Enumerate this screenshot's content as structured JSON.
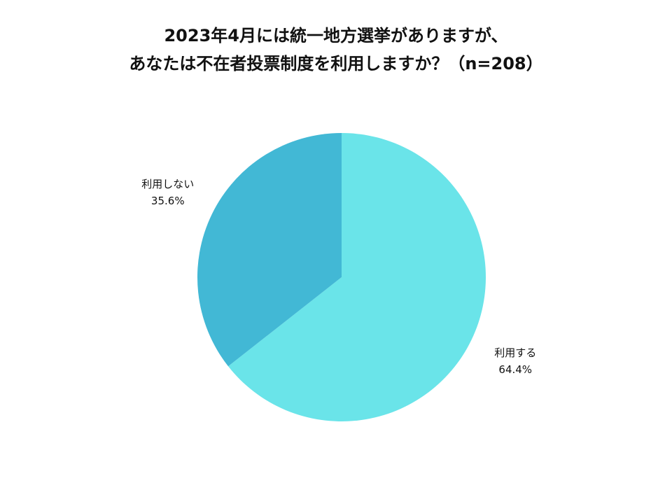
{
  "chart_data": {
    "type": "pie",
    "title": [
      "2023年4月には統一地方選挙がありますが、",
      "あなたは不在者投票制度を利用しますか？（n=208）"
    ],
    "categories": [
      "利用する",
      "利用しない"
    ],
    "values": [
      64.4,
      35.6
    ],
    "value_labels": [
      "64.4%",
      "35.6%"
    ],
    "colors": [
      "#6ae4e9",
      "#42b8d5"
    ]
  }
}
